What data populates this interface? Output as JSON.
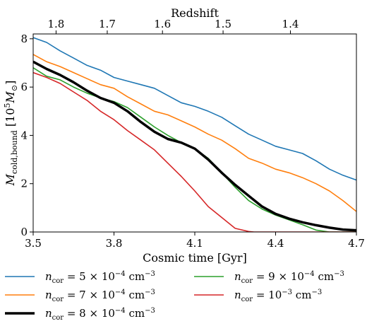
{
  "chart_data": {
    "type": "line",
    "title": "",
    "xlabel": "Cosmic time [Gyr]",
    "ylabel": "M_cold,bound [10^5 M_⊙]",
    "xlim": [
      3.5,
      4.7
    ],
    "ylim": [
      0,
      8.2
    ],
    "x_ticks": [
      "3.5",
      "3.8",
      "4.1",
      "4.4",
      "4.7"
    ],
    "y_ticks": [
      "0",
      "2",
      "4",
      "6",
      "8"
    ],
    "top_axis": {
      "label": "Redshift",
      "ticks": [
        {
          "label": "1.8",
          "t": 3.585
        },
        {
          "label": "1.7",
          "t": 3.775
        },
        {
          "label": "1.6",
          "t": 3.98
        },
        {
          "label": "1.5",
          "t": 4.205
        },
        {
          "label": "1.4",
          "t": 4.455
        }
      ]
    },
    "grid": false,
    "legend_position": "below plot, two columns",
    "series": [
      {
        "name": "n_cor = 5 × 10^-4 cm^-3",
        "color": "#1f77b4",
        "x": [
          3.5,
          3.55,
          3.6,
          3.65,
          3.7,
          3.75,
          3.8,
          3.85,
          3.9,
          3.95,
          4.0,
          4.05,
          4.1,
          4.15,
          4.2,
          4.25,
          4.3,
          4.35,
          4.4,
          4.45,
          4.5,
          4.55,
          4.6,
          4.65,
          4.7
        ],
        "y": [
          8.05,
          7.85,
          7.5,
          7.2,
          6.9,
          6.7,
          6.4,
          6.25,
          6.1,
          5.95,
          5.65,
          5.35,
          5.2,
          5.0,
          4.75,
          4.4,
          4.05,
          3.8,
          3.55,
          3.4,
          3.25,
          2.95,
          2.6,
          2.35,
          2.15
        ]
      },
      {
        "name": "n_cor = 7 × 10^-4 cm^-3",
        "color": "#ff7f0e",
        "x": [
          3.5,
          3.55,
          3.6,
          3.65,
          3.7,
          3.75,
          3.8,
          3.85,
          3.9,
          3.95,
          4.0,
          4.05,
          4.1,
          4.15,
          4.2,
          4.25,
          4.3,
          4.35,
          4.4,
          4.45,
          4.5,
          4.55,
          4.6,
          4.65,
          4.7
        ],
        "y": [
          7.35,
          7.05,
          6.85,
          6.6,
          6.35,
          6.1,
          5.95,
          5.6,
          5.3,
          5.0,
          4.85,
          4.6,
          4.35,
          4.05,
          3.8,
          3.45,
          3.05,
          2.85,
          2.6,
          2.45,
          2.25,
          2.0,
          1.7,
          1.3,
          0.85
        ]
      },
      {
        "name": "n_cor = 9 × 10^-4 cm^-3",
        "color": "#2ca02c",
        "x": [
          3.5,
          3.55,
          3.6,
          3.65,
          3.7,
          3.75,
          3.8,
          3.85,
          3.9,
          3.95,
          4.0,
          4.05,
          4.1,
          4.15,
          4.2,
          4.25,
          4.3,
          4.35,
          4.4,
          4.45,
          4.5,
          4.55,
          4.6,
          4.65,
          4.7
        ],
        "y": [
          6.8,
          6.45,
          6.3,
          6.0,
          5.75,
          5.55,
          5.4,
          5.15,
          4.75,
          4.35,
          4.0,
          3.7,
          3.45,
          3.05,
          2.45,
          1.85,
          1.3,
          0.95,
          0.7,
          0.5,
          0.3,
          0.08,
          0.0,
          0.0,
          0.0
        ]
      },
      {
        "name": "n_cor = 10^-3 cm^-3",
        "color": "#d62728",
        "x": [
          3.5,
          3.55,
          3.6,
          3.65,
          3.7,
          3.75,
          3.8,
          3.85,
          3.9,
          3.95,
          4.0,
          4.05,
          4.1,
          4.15,
          4.2,
          4.25,
          4.3,
          4.32,
          4.35,
          4.4,
          4.5,
          4.6,
          4.7
        ],
        "y": [
          6.6,
          6.4,
          6.15,
          5.8,
          5.45,
          5.0,
          4.65,
          4.2,
          3.8,
          3.4,
          2.85,
          2.3,
          1.7,
          1.05,
          0.6,
          0.15,
          0.02,
          0.0,
          0.0,
          0.0,
          0.0,
          0.0,
          0.0
        ]
      },
      {
        "name": "n_cor = 8 × 10^-4 cm^-3",
        "color": "#000000",
        "bold": true,
        "x": [
          3.5,
          3.55,
          3.6,
          3.65,
          3.7,
          3.75,
          3.8,
          3.85,
          3.9,
          3.95,
          4.0,
          4.05,
          4.1,
          4.15,
          4.2,
          4.25,
          4.3,
          4.35,
          4.4,
          4.45,
          4.5,
          4.55,
          4.6,
          4.65,
          4.7
        ],
        "y": [
          7.05,
          6.75,
          6.5,
          6.2,
          5.85,
          5.55,
          5.35,
          5.0,
          4.55,
          4.15,
          3.85,
          3.7,
          3.45,
          3.0,
          2.45,
          1.95,
          1.5,
          1.05,
          0.75,
          0.55,
          0.4,
          0.28,
          0.18,
          0.1,
          0.07
        ]
      }
    ]
  },
  "legend": [
    {
      "sym": "n",
      "sub": "cor",
      "mid": " = 5 × 10",
      "sup": "−4",
      "unit": " cm",
      "unitsup": "−3",
      "color": "#1f77b4",
      "width": 1.6
    },
    {
      "sym": "n",
      "sub": "cor",
      "mid": " = 9 × 10",
      "sup": "−4",
      "unit": " cm",
      "unitsup": "−3",
      "color": "#2ca02c",
      "width": 1.6
    },
    {
      "sym": "n",
      "sub": "cor",
      "mid": " = 7 × 10",
      "sup": "−4",
      "unit": " cm",
      "unitsup": "−3",
      "color": "#ff7f0e",
      "width": 1.6
    },
    {
      "sym": "n",
      "sub": "cor",
      "mid": " = 10",
      "sup": "−3",
      "unit": " cm",
      "unitsup": "−3",
      "color": "#d62728",
      "width": 1.6
    },
    {
      "sym": "n",
      "sub": "cor",
      "mid": " = 8 × 10",
      "sup": "−4",
      "unit": " cm",
      "unitsup": "−3",
      "color": "#000000",
      "width": 3.5
    }
  ]
}
